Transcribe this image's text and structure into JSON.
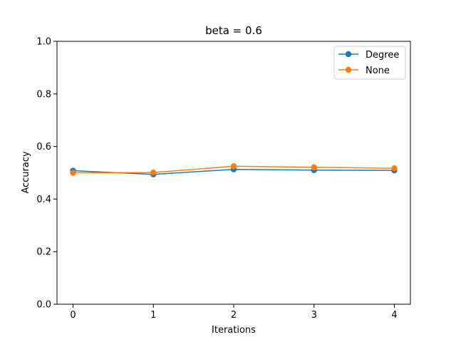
{
  "chart_data": {
    "type": "line",
    "title": "beta = 0.6",
    "xlabel": "Iterations",
    "ylabel": "Accuracy",
    "x": [
      0,
      1,
      2,
      3,
      4
    ],
    "xlim": [
      -0.2,
      4.2
    ],
    "ylim": [
      0.0,
      1.0
    ],
    "xticks": [
      "0",
      "1",
      "2",
      "3",
      "4"
    ],
    "yticks": [
      "0.0",
      "0.2",
      "0.4",
      "0.6",
      "0.8",
      "1.0"
    ],
    "grid": false,
    "legend_position": "top-right",
    "series": [
      {
        "name": "Degree",
        "color": "#1f77b4",
        "values": [
          0.508,
          0.494,
          0.513,
          0.51,
          0.509
        ]
      },
      {
        "name": "None",
        "color": "#ff7f0e",
        "values": [
          0.5,
          0.501,
          0.525,
          0.521,
          0.517
        ]
      }
    ]
  }
}
